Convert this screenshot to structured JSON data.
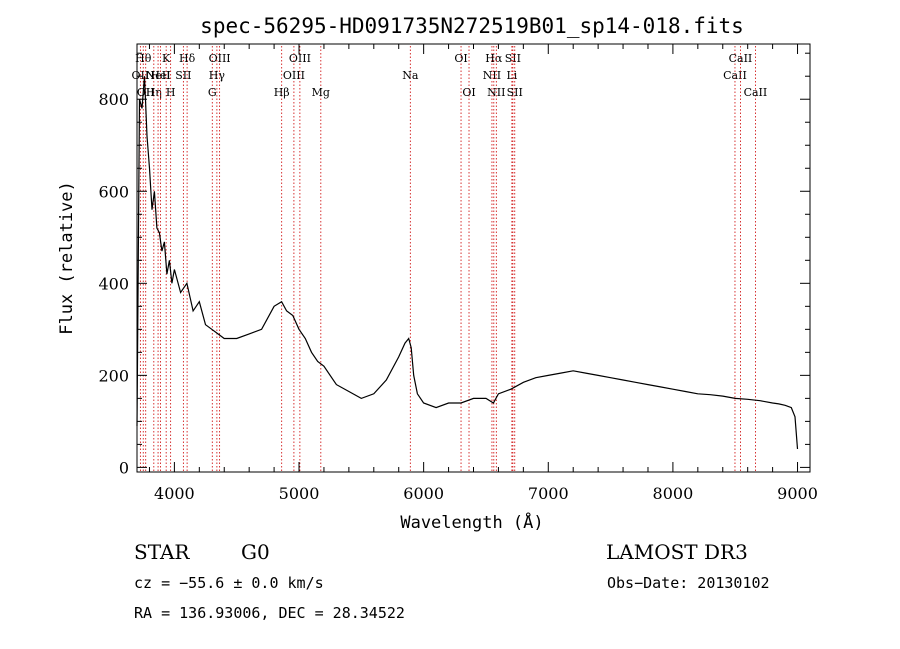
{
  "chart_data": {
    "type": "line",
    "title": "spec-56295-HD091735N272519B01_sp14-018.fits",
    "xlabel": "Wavelength (Å)",
    "ylabel": "Flux (relative)",
    "xlim": [
      3700,
      9100
    ],
    "ylim": [
      -10,
      920
    ],
    "xticks": [
      4000,
      5000,
      6000,
      7000,
      8000,
      9000
    ],
    "yticks": [
      0,
      200,
      400,
      600,
      800
    ],
    "series": [
      {
        "name": "spectrum",
        "x": [
          3700,
          3720,
          3740,
          3760,
          3780,
          3800,
          3820,
          3840,
          3860,
          3880,
          3900,
          3920,
          3940,
          3960,
          3980,
          4000,
          4050,
          4100,
          4150,
          4200,
          4250,
          4300,
          4350,
          4400,
          4500,
          4600,
          4700,
          4800,
          4860,
          4900,
          4950,
          5000,
          5050,
          5100,
          5150,
          5200,
          5300,
          5400,
          5500,
          5600,
          5700,
          5800,
          5850,
          5880,
          5900,
          5920,
          5950,
          6000,
          6100,
          6200,
          6300,
          6400,
          6500,
          6560,
          6600,
          6700,
          6800,
          6900,
          7000,
          7100,
          7200,
          7300,
          7400,
          7500,
          7600,
          7700,
          7800,
          7900,
          8000,
          8100,
          8200,
          8300,
          8400,
          8500,
          8600,
          8700,
          8800,
          8850,
          8900,
          8950,
          8980,
          9000
        ],
        "y": [
          90,
          800,
          780,
          850,
          720,
          650,
          560,
          600,
          520,
          510,
          470,
          490,
          420,
          450,
          400,
          430,
          380,
          400,
          340,
          360,
          310,
          300,
          290,
          280,
          280,
          290,
          300,
          350,
          360,
          340,
          330,
          300,
          280,
          250,
          230,
          220,
          180,
          165,
          150,
          160,
          190,
          240,
          270,
          280,
          260,
          200,
          160,
          140,
          130,
          140,
          140,
          150,
          150,
          140,
          160,
          170,
          185,
          195,
          200,
          205,
          210,
          205,
          200,
          195,
          190,
          185,
          180,
          175,
          170,
          165,
          160,
          158,
          155,
          150,
          148,
          145,
          140,
          138,
          135,
          130,
          110,
          40
        ]
      }
    ],
    "spectral_lines": [
      {
        "wl": 3727,
        "label": "OII",
        "row": 2
      },
      {
        "wl": 3750,
        "label": "Hθ",
        "row": 1
      },
      {
        "wl": 3770,
        "label": "OII",
        "row": 3
      },
      {
        "wl": 3835,
        "label": "Hη",
        "row": 3
      },
      {
        "wl": 3869,
        "label": "NeII",
        "row": 2
      },
      {
        "wl": 3889,
        "label": "HeI",
        "row": 2
      },
      {
        "wl": 3934,
        "label": "K",
        "row": 1
      },
      {
        "wl": 3970,
        "label": "H",
        "row": 3
      },
      {
        "wl": 4072,
        "label": "SII",
        "row": 2
      },
      {
        "wl": 4102,
        "label": "Hδ",
        "row": 1
      },
      {
        "wl": 4304,
        "label": "G",
        "row": 3
      },
      {
        "wl": 4341,
        "label": "Hγ",
        "row": 2
      },
      {
        "wl": 4363,
        "label": "OIII",
        "row": 1
      },
      {
        "wl": 4861,
        "label": "Hβ",
        "row": 3
      },
      {
        "wl": 4959,
        "label": "OIII",
        "row": 2
      },
      {
        "wl": 5007,
        "label": "OIII",
        "row": 1
      },
      {
        "wl": 5175,
        "label": "Mg",
        "row": 3
      },
      {
        "wl": 5893,
        "label": "Na",
        "row": 2
      },
      {
        "wl": 6300,
        "label": "OI",
        "row": 1
      },
      {
        "wl": 6364,
        "label": "OI",
        "row": 3
      },
      {
        "wl": 6548,
        "label": "NII",
        "row": 2
      },
      {
        "wl": 6563,
        "label": "Hα",
        "row": 1
      },
      {
        "wl": 6583,
        "label": "NII",
        "row": 3
      },
      {
        "wl": 6708,
        "label": "Li",
        "row": 2
      },
      {
        "wl": 6716,
        "label": "SII",
        "row": 1
      },
      {
        "wl": 6731,
        "label": "SII",
        "row": 3
      },
      {
        "wl": 8498,
        "label": "CaII",
        "row": 2
      },
      {
        "wl": 8542,
        "label": "CaII",
        "row": 1
      },
      {
        "wl": 8662,
        "label": "CaII",
        "row": 3
      }
    ]
  },
  "info": {
    "object_class": "STAR",
    "subclass": "G0",
    "survey": "LAMOST DR3",
    "cz": "cz = −55.6 ± 0.0 km/s",
    "obs_date": "Obs−Date: 20130102",
    "coords": "RA = 136.93006, DEC =  28.34522"
  },
  "colors": {
    "line": "#000000",
    "marker": "#cc0000",
    "axis": "#000000"
  }
}
